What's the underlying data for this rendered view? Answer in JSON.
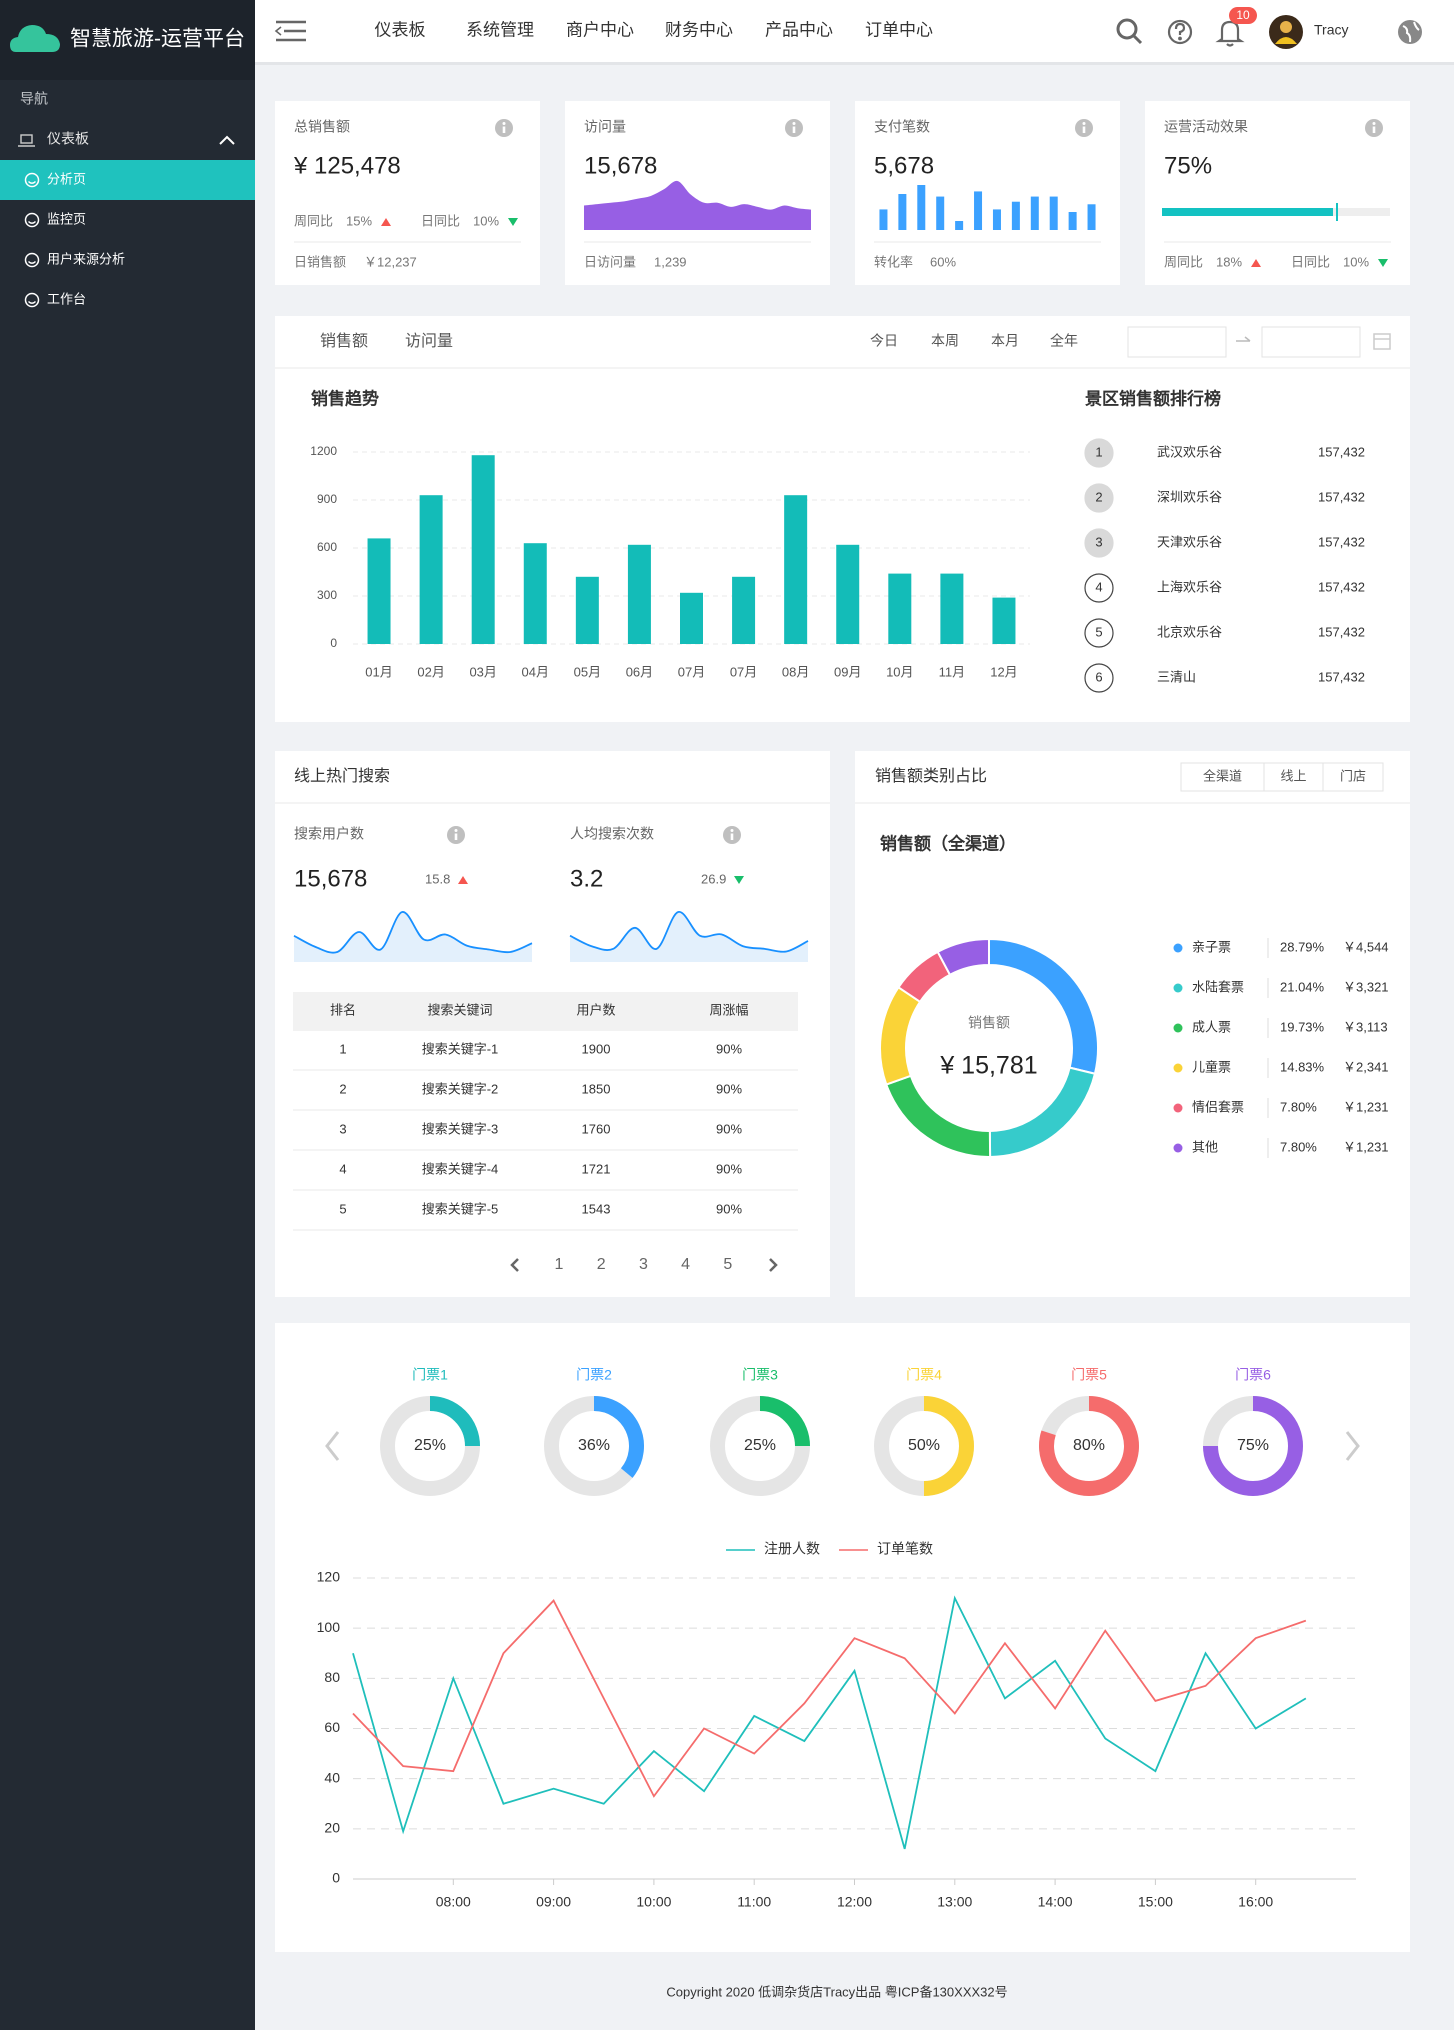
{
  "sidebar": {
    "brand": "智慧旅游-运营平台",
    "section": "导航",
    "menu": "仪表板",
    "items": [
      "分析页",
      "监控页",
      "用户来源分析",
      "工作台"
    ]
  },
  "header": {
    "nav": [
      "仪表板",
      "系统管理",
      "商户中心",
      "财务中心",
      "产品中心",
      "订单中心"
    ],
    "badge": "10",
    "user": "Tracy"
  },
  "kpis": [
    {
      "title": "总销售额",
      "value": "¥ 125,478",
      "trends": [
        {
          "label": "周同比",
          "value": "15%",
          "direction": "up"
        },
        {
          "label": "日同比",
          "value": "10%",
          "direction": "down"
        }
      ],
      "footer_label": "日销售额",
      "footer_value": "￥12,237"
    },
    {
      "title": "访问量",
      "value": "15,678",
      "chart": {
        "type": "area",
        "color": "#975fe4",
        "values": [
          18,
          19,
          20,
          21,
          23,
          25,
          30,
          36,
          26,
          20,
          20,
          17,
          19,
          17,
          15,
          18,
          16,
          15
        ]
      },
      "footer_label": "日访问量",
      "footer_value": "1,239"
    },
    {
      "title": "支付笔数",
      "value": "5,678",
      "chart": {
        "type": "bar",
        "color": "#3ba1ff",
        "values": [
          16,
          28,
          35,
          26,
          7,
          30,
          16,
          22,
          26,
          26,
          14,
          20
        ]
      },
      "footer_label": "转化率",
      "footer_value": "60%"
    },
    {
      "title": "运营活动效果",
      "value": "75%",
      "progress": 75,
      "color": "#13c2c2",
      "trends": [
        {
          "label": "周同比",
          "value": "18%",
          "direction": "up"
        },
        {
          "label": "日同比",
          "value": "10%",
          "direction": "down"
        }
      ]
    }
  ],
  "tabs": {
    "tabs": [
      "销售额",
      "访问量"
    ],
    "ranges": [
      "今日",
      "本周",
      "本月",
      "全年"
    ]
  },
  "ranking": {
    "title": "景区销售额排行榜",
    "rows": [
      {
        "rank": 1,
        "name": "武汉欢乐谷",
        "value": "157,432"
      },
      {
        "rank": 2,
        "name": "深圳欢乐谷",
        "value": "157,432"
      },
      {
        "rank": 3,
        "name": "天津欢乐谷",
        "value": "157,432"
      },
      {
        "rank": 4,
        "name": "上海欢乐谷",
        "value": "157,432"
      },
      {
        "rank": 5,
        "name": "北京欢乐谷",
        "value": "157,432"
      },
      {
        "rank": 6,
        "name": "三清山",
        "value": "157,432"
      }
    ]
  },
  "search": {
    "title": "线上热门搜索",
    "stats": [
      {
        "label": "搜索用户数",
        "value": "15,678",
        "change": "15.8",
        "direction": "up",
        "values": [
          21,
          12,
          8,
          24,
          10,
          40,
          18,
          22,
          13,
          10,
          8,
          15
        ]
      },
      {
        "label": "人均搜索次数",
        "value": "3.2",
        "change": "26.9",
        "direction": "down",
        "values": [
          20,
          12,
          10,
          26,
          10,
          38,
          20,
          21,
          12,
          10,
          8,
          16
        ]
      }
    ],
    "table": {
      "columns": [
        "排名",
        "搜索关键词",
        "用户数",
        "周涨幅"
      ],
      "rows": [
        [
          1,
          "搜索关键字-1",
          1900,
          "90%"
        ],
        [
          2,
          "搜索关键字-2",
          1850,
          "90%"
        ],
        [
          3,
          "搜索关键字-3",
          1760,
          "90%"
        ],
        [
          4,
          "搜索关键字-4",
          1721,
          "90%"
        ],
        [
          5,
          "搜索关键字-5",
          1543,
          "90%"
        ]
      ]
    },
    "pages": [
      1,
      2,
      3,
      4,
      5
    ]
  },
  "chart_data": [
    {
      "type": "bar",
      "title": "销售趋势",
      "categories": [
        "01月",
        "02月",
        "03月",
        "04月",
        "05月",
        "06月",
        "07月",
        "07月",
        "08月",
        "09月",
        "10月",
        "11月",
        "12月"
      ],
      "values": [
        660,
        930,
        1180,
        630,
        420,
        620,
        320,
        420,
        930,
        620,
        440,
        440,
        290
      ],
      "color": "#13bcb8",
      "ylim": [
        0,
        1200
      ],
      "yticks": [
        0,
        300,
        600,
        900,
        1200
      ],
      "grid": true
    },
    {
      "type": "pie",
      "title": "销售额类别占比",
      "buttons": [
        "全渠道",
        "线上",
        "门店"
      ],
      "subtitle": "销售额（全渠道）",
      "center_label": "销售额",
      "total": "¥ 15,781",
      "categories": [
        "亲子票",
        "水陆套票",
        "成人票",
        "儿童票",
        "情侣套票",
        "其他"
      ],
      "values": [
        4544,
        3321,
        3113,
        2341,
        1231,
        1231
      ],
      "value_labels": [
        "￥4,544",
        "￥3,321",
        "￥3,113",
        "￥2,341",
        "￥1,231",
        "￥1,231"
      ],
      "percent_labels": [
        "28.79%",
        "21.04%",
        "19.73%",
        "14.83%",
        "7.80%",
        "7.80%"
      ],
      "colors": [
        "#3ba1ff",
        "#36cbcb",
        "#2fc25b",
        "#fad337",
        "#f2637b",
        "#975fe4"
      ]
    },
    {
      "type": "donut",
      "categories": [
        "门票1",
        "门票2",
        "门票3",
        "门票4",
        "门票5",
        "门票6"
      ],
      "values": [
        25,
        36,
        25,
        50,
        80,
        75
      ],
      "value_labels": [
        "25%",
        "36%",
        "25%",
        "50%",
        "80%",
        "75%"
      ],
      "colors": [
        "#1fbcbc",
        "#3ba1ff",
        "#19be6b",
        "#fad337",
        "#f56c6c",
        "#975fe4"
      ]
    },
    {
      "type": "line",
      "categories": [
        null,
        null,
        "08:00",
        null,
        "09:00",
        null,
        "10:00",
        null,
        "11:00",
        null,
        "12:00",
        null,
        "13:00",
        null,
        "14:00",
        null,
        "15:00",
        null,
        "16:00",
        null
      ],
      "series": [
        {
          "name": "注册人数",
          "color": "#1fbfbb",
          "values": [
            90,
            19,
            80,
            30,
            36,
            30,
            51,
            35,
            65,
            55,
            83,
            12,
            112,
            72,
            87,
            56,
            43,
            90,
            60,
            72
          ]
        },
        {
          "name": "订单笔数",
          "color": "#f56c6c",
          "values": [
            66,
            45,
            43,
            90,
            111,
            72,
            33,
            60,
            50,
            70,
            96,
            88,
            66,
            94,
            68,
            99,
            71,
            77,
            96,
            103
          ]
        }
      ],
      "ylim": [
        0,
        120
      ],
      "yticks": [
        0,
        20,
        40,
        60,
        80,
        100,
        120
      ],
      "grid": true
    }
  ],
  "footer": "Copyright  2020 低调杂货店Tracy出品 粤ICP备130XXX32号"
}
